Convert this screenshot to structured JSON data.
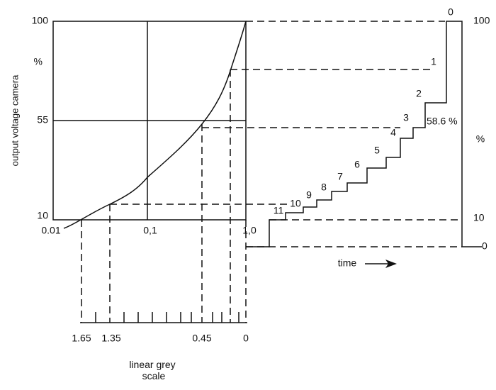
{
  "left_axis": {
    "label": "output voltage camera",
    "unit": "%",
    "ticks": [
      "100",
      "55",
      "10"
    ]
  },
  "bottom_axis": {
    "ticks": [
      "0.01",
      "0,1",
      "1,0"
    ]
  },
  "grey_scale": {
    "label": "linear grey scale",
    "ticks": [
      "1.65",
      "1.35",
      "0.45",
      "0"
    ]
  },
  "steps": [
    "0",
    "1",
    "2",
    "3",
    "4",
    "5",
    "6",
    "7",
    "8",
    "9",
    "10",
    "11"
  ],
  "step_annotation": "58.6 %",
  "right_axis": {
    "unit": "%",
    "ticks": [
      "100",
      "10",
      "0"
    ]
  },
  "time_label": "time"
}
